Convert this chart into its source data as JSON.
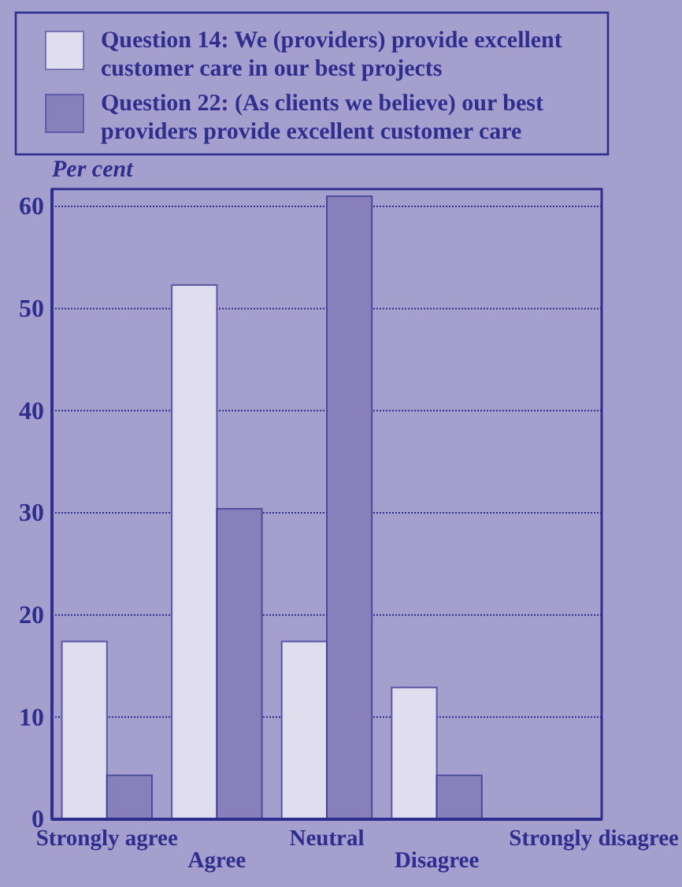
{
  "chart_data": {
    "type": "bar",
    "ylabel": "Per cent",
    "categories": [
      "Strongly agree",
      "Agree",
      "Neutral",
      "Disagree",
      "Strongly disagree"
    ],
    "series": [
      {
        "name": "Question 14: We (providers) provide excellent customer care in our best projects",
        "color": "#e0ddef",
        "values": [
          17.4,
          52.3,
          17.4,
          12.9,
          0
        ]
      },
      {
        "name": "Question 22: (As clients we believe) our best providers provide excellent customer care",
        "color": "#8780bb",
        "values": [
          4.3,
          30.4,
          61,
          4.3,
          0
        ]
      }
    ],
    "ylim": [
      0,
      61.7
    ],
    "yticks": [
      0,
      10,
      20,
      30,
      40,
      50,
      60
    ],
    "grid": "y",
    "legend": "top"
  }
}
